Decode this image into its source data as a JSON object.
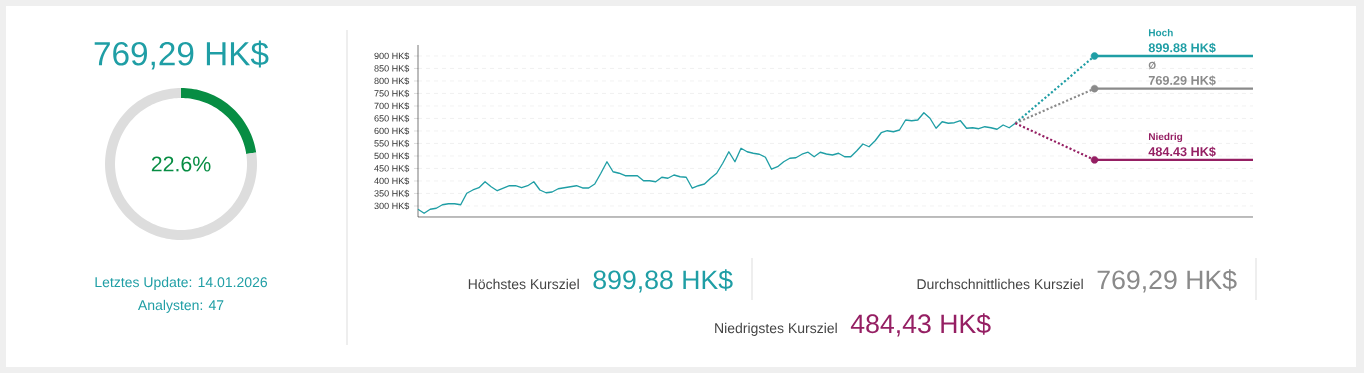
{
  "chart_data": [
    {
      "type": "donut",
      "title": "769,29 HK$",
      "categories": [
        null,
        null
      ],
      "values": [
        22.6,
        77.4
      ],
      "colors": [
        "#078d43",
        "#dddddd"
      ],
      "value_labels": [
        "22.6%",
        null
      ],
      "annotations": [
        "Letztes Update: 14.01.2026",
        "Analysten: 47"
      ]
    },
    {
      "type": "line",
      "categories": [
        null,
        null,
        null,
        null,
        null,
        null,
        null,
        null,
        null,
        null,
        null,
        null,
        null,
        null,
        null,
        null,
        null,
        null,
        null,
        null,
        null,
        null,
        null,
        null,
        null,
        null,
        null,
        null,
        null,
        null,
        null,
        null,
        null,
        null,
        null,
        null,
        null,
        null,
        null,
        null,
        null,
        null,
        null,
        null,
        null,
        null,
        null,
        null,
        null,
        null,
        null,
        null,
        null,
        null,
        null,
        null,
        null,
        null,
        null,
        null,
        null,
        null,
        null,
        null,
        null,
        null,
        null,
        null,
        null,
        null,
        null,
        null,
        null,
        null,
        null,
        null,
        null,
        null,
        null,
        null,
        null,
        null,
        null,
        null,
        null,
        null,
        null,
        null,
        null,
        null,
        null,
        null,
        null,
        null,
        null,
        null,
        null,
        null,
        null,
        null,
        null,
        null,
        null,
        null,
        null,
        null,
        null,
        null,
        null,
        null,
        null,
        null,
        null,
        null,
        null,
        null,
        null,
        null,
        null,
        null,
        null,
        null,
        null,
        null,
        null,
        null,
        null,
        null,
        null,
        null,
        null,
        null,
        null,
        null,
        null,
        null,
        null,
        null
      ],
      "ylim": [
        256,
        944
      ],
      "yticks": [
        {
          "value": 300,
          "label": "300 HK$"
        },
        {
          "value": 350,
          "label": "350 HK$"
        },
        {
          "value": 400,
          "label": "400 HK$"
        },
        {
          "value": 450,
          "label": "450 HK$"
        },
        {
          "value": 500,
          "label": "500 HK$"
        },
        {
          "value": 550,
          "label": "550 HK$"
        },
        {
          "value": 600,
          "label": "600 HK$"
        },
        {
          "value": 650,
          "label": "650 HK$"
        },
        {
          "value": 700,
          "label": "700 HK$"
        },
        {
          "value": 750,
          "label": "750 HK$"
        },
        {
          "value": 800,
          "label": "800 HK$"
        },
        {
          "value": 850,
          "label": "850 HK$"
        },
        {
          "value": 900,
          "label": "900 HK$"
        }
      ],
      "grid": "y",
      "series": [
        {
          "color": "#1f9ea5",
          "line_style": "solid",
          "values": [
            287,
            271,
            287,
            291,
            305,
            309,
            309,
            305,
            351,
            364,
            373,
            397,
            377,
            361,
            371,
            381,
            381,
            373,
            381,
            397,
            364,
            353,
            356,
            369,
            373,
            377,
            381,
            372,
            372,
            388,
            431,
            477,
            437,
            431,
            421,
            421,
            421,
            401,
            401,
            397,
            415,
            411,
            424,
            417,
            415,
            371,
            381,
            388,
            411,
            431,
            471,
            517,
            477,
            531,
            517,
            511,
            507,
            495,
            447,
            457,
            477,
            491,
            493,
            507,
            515,
            497,
            515,
            508,
            504,
            511,
            497,
            497,
            521,
            548,
            537,
            561,
            593,
            601,
            597,
            604,
            644,
            641,
            644,
            673,
            651,
            611,
            637,
            631,
            633,
            641,
            611,
            613,
            609,
            617,
            613,
            607,
            624,
            613,
            631,
            null,
            null,
            null,
            null,
            null,
            null,
            null,
            null,
            null,
            null,
            null,
            null,
            null,
            null,
            null,
            null,
            null,
            null,
            null,
            null,
            null,
            null,
            null,
            null,
            null,
            null,
            null,
            null,
            null,
            null,
            null,
            null,
            null,
            null,
            null,
            null,
            null,
            null,
            null
          ]
        },
        {
          "color": "#1f9ea5",
          "line_style": "dotted",
          "values": [
            null,
            null,
            null,
            null,
            null,
            null,
            null,
            null,
            null,
            null,
            null,
            null,
            null,
            null,
            null,
            null,
            null,
            null,
            null,
            null,
            null,
            null,
            null,
            null,
            null,
            null,
            null,
            null,
            null,
            null,
            null,
            null,
            null,
            null,
            null,
            null,
            null,
            null,
            null,
            null,
            null,
            null,
            null,
            null,
            null,
            null,
            null,
            null,
            null,
            null,
            null,
            null,
            null,
            null,
            null,
            null,
            null,
            null,
            null,
            null,
            null,
            null,
            null,
            null,
            null,
            null,
            null,
            null,
            null,
            null,
            null,
            null,
            null,
            null,
            null,
            null,
            null,
            null,
            null,
            null,
            null,
            null,
            null,
            null,
            null,
            null,
            null,
            null,
            null,
            null,
            null,
            null,
            null,
            null,
            null,
            null,
            null,
            null,
            631,
            null,
            null,
            null,
            null,
            null,
            null,
            null,
            null,
            null,
            null,
            null,
            null,
            899.88,
            null,
            null,
            null,
            null,
            null,
            null,
            null,
            null,
            null,
            null,
            null,
            null,
            null,
            null,
            null,
            null,
            null,
            null,
            null,
            null,
            null,
            null,
            null,
            null,
            null,
            null
          ]
        },
        {
          "color": "#8a8a8a",
          "line_style": "dotted",
          "values": [
            null,
            null,
            null,
            null,
            null,
            null,
            null,
            null,
            null,
            null,
            null,
            null,
            null,
            null,
            null,
            null,
            null,
            null,
            null,
            null,
            null,
            null,
            null,
            null,
            null,
            null,
            null,
            null,
            null,
            null,
            null,
            null,
            null,
            null,
            null,
            null,
            null,
            null,
            null,
            null,
            null,
            null,
            null,
            null,
            null,
            null,
            null,
            null,
            null,
            null,
            null,
            null,
            null,
            null,
            null,
            null,
            null,
            null,
            null,
            null,
            null,
            null,
            null,
            null,
            null,
            null,
            null,
            null,
            null,
            null,
            null,
            null,
            null,
            null,
            null,
            null,
            null,
            null,
            null,
            null,
            null,
            null,
            null,
            null,
            null,
            null,
            null,
            null,
            null,
            null,
            null,
            null,
            null,
            null,
            null,
            null,
            null,
            null,
            631,
            null,
            null,
            null,
            null,
            null,
            null,
            null,
            null,
            null,
            null,
            null,
            null,
            769.29,
            null,
            null,
            null,
            null,
            null,
            null,
            null,
            null,
            null,
            null,
            null,
            null,
            null,
            null,
            null,
            null,
            null,
            null,
            null,
            null,
            null,
            null,
            null,
            null,
            null,
            null
          ]
        },
        {
          "color": "#951f63",
          "line_style": "dotted",
          "values": [
            null,
            null,
            null,
            null,
            null,
            null,
            null,
            null,
            null,
            null,
            null,
            null,
            null,
            null,
            null,
            null,
            null,
            null,
            null,
            null,
            null,
            null,
            null,
            null,
            null,
            null,
            null,
            null,
            null,
            null,
            null,
            null,
            null,
            null,
            null,
            null,
            null,
            null,
            null,
            null,
            null,
            null,
            null,
            null,
            null,
            null,
            null,
            null,
            null,
            null,
            null,
            null,
            null,
            null,
            null,
            null,
            null,
            null,
            null,
            null,
            null,
            null,
            null,
            null,
            null,
            null,
            null,
            null,
            null,
            null,
            null,
            null,
            null,
            null,
            null,
            null,
            null,
            null,
            null,
            null,
            null,
            null,
            null,
            null,
            null,
            null,
            null,
            null,
            null,
            null,
            null,
            null,
            null,
            null,
            null,
            null,
            null,
            null,
            631,
            null,
            null,
            null,
            null,
            null,
            null,
            null,
            null,
            null,
            null,
            null,
            null,
            484.43,
            null,
            null,
            null,
            null,
            null,
            null,
            null,
            null,
            null,
            null,
            null,
            null,
            null,
            null,
            null,
            null,
            null,
            null,
            null,
            null,
            null,
            null,
            null,
            null,
            null,
            null
          ]
        },
        {
          "name": "Hoch",
          "color": "#1f9ea5",
          "line_style": "solid",
          "value_labels": [
            null,
            null,
            null,
            null,
            null,
            null,
            null,
            null,
            null,
            null,
            null,
            null,
            null,
            null,
            null,
            null,
            null,
            null,
            null,
            null,
            null,
            null,
            null,
            null,
            null,
            null,
            null,
            null,
            null,
            null,
            null,
            null,
            null,
            null,
            null,
            null,
            null,
            null,
            null,
            null,
            null,
            null,
            null,
            null,
            null,
            null,
            null,
            null,
            null,
            null,
            null,
            null,
            null,
            null,
            null,
            null,
            null,
            null,
            null,
            null,
            null,
            null,
            null,
            null,
            null,
            null,
            null,
            null,
            null,
            null,
            null,
            null,
            null,
            null,
            null,
            null,
            null,
            null,
            null,
            null,
            null,
            null,
            null,
            null,
            null,
            null,
            null,
            null,
            null,
            null,
            null,
            null,
            null,
            null,
            null,
            null,
            null,
            null,
            null,
            null,
            null,
            null,
            null,
            null,
            null,
            null,
            null,
            null,
            null,
            null,
            null,
            null,
            null,
            null,
            null,
            null,
            null,
            null,
            null,
            null,
            "899.88 HK$",
            null,
            null,
            null,
            null,
            null,
            null,
            null,
            null,
            null,
            null,
            null,
            null,
            null,
            null,
            null,
            null,
            null
          ],
          "values": [
            null,
            null,
            null,
            null,
            null,
            null,
            null,
            null,
            null,
            null,
            null,
            null,
            null,
            null,
            null,
            null,
            null,
            null,
            null,
            null,
            null,
            null,
            null,
            null,
            null,
            null,
            null,
            null,
            null,
            null,
            null,
            null,
            null,
            null,
            null,
            null,
            null,
            null,
            null,
            null,
            null,
            null,
            null,
            null,
            null,
            null,
            null,
            null,
            null,
            null,
            null,
            null,
            null,
            null,
            null,
            null,
            null,
            null,
            null,
            null,
            null,
            null,
            null,
            null,
            null,
            null,
            null,
            null,
            null,
            null,
            null,
            null,
            null,
            null,
            null,
            null,
            null,
            null,
            null,
            null,
            null,
            null,
            null,
            null,
            null,
            null,
            null,
            null,
            null,
            null,
            null,
            null,
            null,
            null,
            null,
            null,
            null,
            null,
            null,
            null,
            null,
            null,
            null,
            null,
            null,
            null,
            null,
            null,
            null,
            null,
            null,
            899.88,
            899.88,
            899.88,
            899.88,
            899.88,
            899.88,
            899.88,
            899.88,
            899.88,
            899.88,
            899.88,
            899.88,
            899.88,
            899.88,
            899.88,
            899.88,
            899.88,
            899.88,
            899.88,
            899.88,
            899.88,
            899.88,
            899.88,
            899.88,
            899.88,
            899.88,
            899.88
          ]
        },
        {
          "name": "Ø",
          "color": "#8a8a8a",
          "line_style": "solid",
          "value_labels": [
            null,
            null,
            null,
            null,
            null,
            null,
            null,
            null,
            null,
            null,
            null,
            null,
            null,
            null,
            null,
            null,
            null,
            null,
            null,
            null,
            null,
            null,
            null,
            null,
            null,
            null,
            null,
            null,
            null,
            null,
            null,
            null,
            null,
            null,
            null,
            null,
            null,
            null,
            null,
            null,
            null,
            null,
            null,
            null,
            null,
            null,
            null,
            null,
            null,
            null,
            null,
            null,
            null,
            null,
            null,
            null,
            null,
            null,
            null,
            null,
            null,
            null,
            null,
            null,
            null,
            null,
            null,
            null,
            null,
            null,
            null,
            null,
            null,
            null,
            null,
            null,
            null,
            null,
            null,
            null,
            null,
            null,
            null,
            null,
            null,
            null,
            null,
            null,
            null,
            null,
            null,
            null,
            null,
            null,
            null,
            null,
            null,
            null,
            null,
            null,
            null,
            null,
            null,
            null,
            null,
            null,
            null,
            null,
            null,
            null,
            null,
            null,
            null,
            null,
            null,
            null,
            null,
            null,
            null,
            null,
            "769.29 HK$",
            null,
            null,
            null,
            null,
            null,
            null,
            null,
            null,
            null,
            null,
            null,
            null,
            null,
            null,
            null,
            null,
            null
          ],
          "values": [
            null,
            null,
            null,
            null,
            null,
            null,
            null,
            null,
            null,
            null,
            null,
            null,
            null,
            null,
            null,
            null,
            null,
            null,
            null,
            null,
            null,
            null,
            null,
            null,
            null,
            null,
            null,
            null,
            null,
            null,
            null,
            null,
            null,
            null,
            null,
            null,
            null,
            null,
            null,
            null,
            null,
            null,
            null,
            null,
            null,
            null,
            null,
            null,
            null,
            null,
            null,
            null,
            null,
            null,
            null,
            null,
            null,
            null,
            null,
            null,
            null,
            null,
            null,
            null,
            null,
            null,
            null,
            null,
            null,
            null,
            null,
            null,
            null,
            null,
            null,
            null,
            null,
            null,
            null,
            null,
            null,
            null,
            null,
            null,
            null,
            null,
            null,
            null,
            null,
            null,
            null,
            null,
            null,
            null,
            null,
            null,
            null,
            null,
            null,
            null,
            null,
            null,
            null,
            null,
            null,
            null,
            null,
            null,
            null,
            null,
            null,
            769.29,
            769.29,
            769.29,
            769.29,
            769.29,
            769.29,
            769.29,
            769.29,
            769.29,
            769.29,
            769.29,
            769.29,
            769.29,
            769.29,
            769.29,
            769.29,
            769.29,
            769.29,
            769.29,
            769.29,
            769.29,
            769.29,
            769.29,
            769.29,
            769.29,
            769.29,
            769.29
          ]
        },
        {
          "name": "Niedrig",
          "color": "#951f63",
          "line_style": "solid",
          "value_labels": [
            null,
            null,
            null,
            null,
            null,
            null,
            null,
            null,
            null,
            null,
            null,
            null,
            null,
            null,
            null,
            null,
            null,
            null,
            null,
            null,
            null,
            null,
            null,
            null,
            null,
            null,
            null,
            null,
            null,
            null,
            null,
            null,
            null,
            null,
            null,
            null,
            null,
            null,
            null,
            null,
            null,
            null,
            null,
            null,
            null,
            null,
            null,
            null,
            null,
            null,
            null,
            null,
            null,
            null,
            null,
            null,
            null,
            null,
            null,
            null,
            null,
            null,
            null,
            null,
            null,
            null,
            null,
            null,
            null,
            null,
            null,
            null,
            null,
            null,
            null,
            null,
            null,
            null,
            null,
            null,
            null,
            null,
            null,
            null,
            null,
            null,
            null,
            null,
            null,
            null,
            null,
            null,
            null,
            null,
            null,
            null,
            null,
            null,
            null,
            null,
            null,
            null,
            null,
            null,
            null,
            null,
            null,
            null,
            null,
            null,
            null,
            null,
            null,
            null,
            null,
            null,
            null,
            null,
            null,
            null,
            "484.43 HK$",
            null,
            null,
            null,
            null,
            null,
            null,
            null,
            null,
            null,
            null,
            null,
            null,
            null,
            null,
            null,
            null,
            null
          ],
          "values": [
            null,
            null,
            null,
            null,
            null,
            null,
            null,
            null,
            null,
            null,
            null,
            null,
            null,
            null,
            null,
            null,
            null,
            null,
            null,
            null,
            null,
            null,
            null,
            null,
            null,
            null,
            null,
            null,
            null,
            null,
            null,
            null,
            null,
            null,
            null,
            null,
            null,
            null,
            null,
            null,
            null,
            null,
            null,
            null,
            null,
            null,
            null,
            null,
            null,
            null,
            null,
            null,
            null,
            null,
            null,
            null,
            null,
            null,
            null,
            null,
            null,
            null,
            null,
            null,
            null,
            null,
            null,
            null,
            null,
            null,
            null,
            null,
            null,
            null,
            null,
            null,
            null,
            null,
            null,
            null,
            null,
            null,
            null,
            null,
            null,
            null,
            null,
            null,
            null,
            null,
            null,
            null,
            null,
            null,
            null,
            null,
            null,
            null,
            null,
            null,
            null,
            null,
            null,
            null,
            null,
            null,
            null,
            null,
            null,
            null,
            null,
            484.43,
            484.43,
            484.43,
            484.43,
            484.43,
            484.43,
            484.43,
            484.43,
            484.43,
            484.43,
            484.43,
            484.43,
            484.43,
            484.43,
            484.43,
            484.43,
            484.43,
            484.43,
            484.43,
            484.43,
            484.43,
            484.43,
            484.43,
            484.43,
            484.43,
            484.43,
            484.43
          ]
        },
        {
          "type": "scatter",
          "color": "#1f9ea5",
          "values": [
            null,
            null,
            null,
            null,
            null,
            null,
            null,
            null,
            null,
            null,
            null,
            null,
            null,
            null,
            null,
            null,
            null,
            null,
            null,
            null,
            null,
            null,
            null,
            null,
            null,
            null,
            null,
            null,
            null,
            null,
            null,
            null,
            null,
            null,
            null,
            null,
            null,
            null,
            null,
            null,
            null,
            null,
            null,
            null,
            null,
            null,
            null,
            null,
            null,
            null,
            null,
            null,
            null,
            null,
            null,
            null,
            null,
            null,
            null,
            null,
            null,
            null,
            null,
            null,
            null,
            null,
            null,
            null,
            null,
            null,
            null,
            null,
            null,
            null,
            null,
            null,
            null,
            null,
            null,
            null,
            null,
            null,
            null,
            null,
            null,
            null,
            null,
            null,
            null,
            null,
            null,
            null,
            null,
            null,
            null,
            null,
            null,
            null,
            null,
            null,
            null,
            null,
            null,
            null,
            null,
            null,
            null,
            null,
            null,
            null,
            null,
            899.88,
            null,
            null,
            null,
            null,
            null,
            null,
            null,
            null,
            null,
            null,
            null,
            null,
            null,
            null,
            null,
            null,
            null,
            null,
            null,
            null,
            null,
            null,
            null,
            null,
            null,
            null
          ]
        },
        {
          "type": "scatter",
          "color": "#8a8a8a",
          "values": [
            null,
            null,
            null,
            null,
            null,
            null,
            null,
            null,
            null,
            null,
            null,
            null,
            null,
            null,
            null,
            null,
            null,
            null,
            null,
            null,
            null,
            null,
            null,
            null,
            null,
            null,
            null,
            null,
            null,
            null,
            null,
            null,
            null,
            null,
            null,
            null,
            null,
            null,
            null,
            null,
            null,
            null,
            null,
            null,
            null,
            null,
            null,
            null,
            null,
            null,
            null,
            null,
            null,
            null,
            null,
            null,
            null,
            null,
            null,
            null,
            null,
            null,
            null,
            null,
            null,
            null,
            null,
            null,
            null,
            null,
            null,
            null,
            null,
            null,
            null,
            null,
            null,
            null,
            null,
            null,
            null,
            null,
            null,
            null,
            null,
            null,
            null,
            null,
            null,
            null,
            null,
            null,
            null,
            null,
            null,
            null,
            null,
            null,
            null,
            null,
            null,
            null,
            null,
            null,
            null,
            null,
            null,
            null,
            null,
            null,
            null,
            769.29,
            null,
            null,
            null,
            null,
            null,
            null,
            null,
            null,
            null,
            null,
            null,
            null,
            null,
            null,
            null,
            null,
            null,
            null,
            null,
            null,
            null,
            null,
            null,
            null,
            null,
            null
          ]
        },
        {
          "type": "scatter",
          "color": "#951f63",
          "values": [
            null,
            null,
            null,
            null,
            null,
            null,
            null,
            null,
            null,
            null,
            null,
            null,
            null,
            null,
            null,
            null,
            null,
            null,
            null,
            null,
            null,
            null,
            null,
            null,
            null,
            null,
            null,
            null,
            null,
            null,
            null,
            null,
            null,
            null,
            null,
            null,
            null,
            null,
            null,
            null,
            null,
            null,
            null,
            null,
            null,
            null,
            null,
            null,
            null,
            null,
            null,
            null,
            null,
            null,
            null,
            null,
            null,
            null,
            null,
            null,
            null,
            null,
            null,
            null,
            null,
            null,
            null,
            null,
            null,
            null,
            null,
            null,
            null,
            null,
            null,
            null,
            null,
            null,
            null,
            null,
            null,
            null,
            null,
            null,
            null,
            null,
            null,
            null,
            null,
            null,
            null,
            null,
            null,
            null,
            null,
            null,
            null,
            null,
            null,
            null,
            null,
            null,
            null,
            null,
            null,
            null,
            null,
            null,
            null,
            null,
            null,
            484.43,
            null,
            null,
            null,
            null,
            null,
            null,
            null,
            null,
            null,
            null,
            null,
            null,
            null,
            null,
            null,
            null,
            null,
            null,
            null,
            null,
            null,
            null,
            null,
            null,
            null,
            null
          ]
        }
      ]
    },
    {
      "type": "other",
      "annotations": [
        "Höchstes Kursziel",
        "899,88 HK$",
        "Durchschnittliches Kursziel",
        "769,29 HK$",
        "Niedrigstes Kursziel",
        "484,43 HK$"
      ]
    }
  ]
}
